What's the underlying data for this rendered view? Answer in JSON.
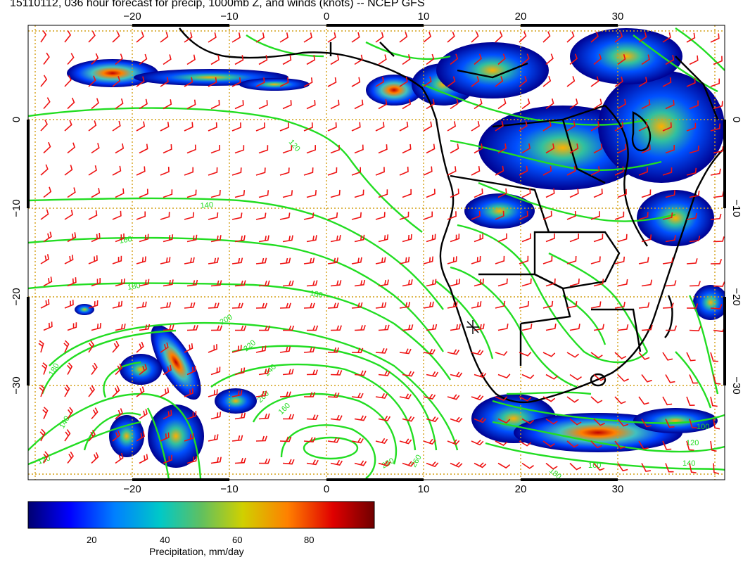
{
  "title": "15110112, 036 hour forecast for precip, 1000mb Z, and winds (knots) -- NCEP GFS",
  "axes": {
    "lon_ticks": [
      "−20",
      "−10",
      "0",
      "10",
      "20",
      "30"
    ],
    "lat_ticks": [
      "0",
      "−10",
      "−20",
      "−30"
    ]
  },
  "contour_labels": [
    "120",
    "140",
    "160",
    "180",
    "180",
    "200",
    "220",
    "240",
    "260",
    "260",
    "280",
    "160",
    "180",
    "140",
    "120",
    "100",
    "120",
    "140",
    "160",
    "180"
  ],
  "colorbar": {
    "label": "Precipitation, mm/day",
    "ticks": [
      "20",
      "40",
      "60",
      "80"
    ],
    "colors": [
      "#000080",
      "#0000ff",
      "#0080ff",
      "#00c0c0",
      "#40c080",
      "#a0c040",
      "#e0c000",
      "#ff8000",
      "#e00000",
      "#800000"
    ]
  },
  "colors": {
    "contour": "#22dd22",
    "barb": "#ee1111",
    "coast": "#000000",
    "grid": "#d4a017"
  }
}
